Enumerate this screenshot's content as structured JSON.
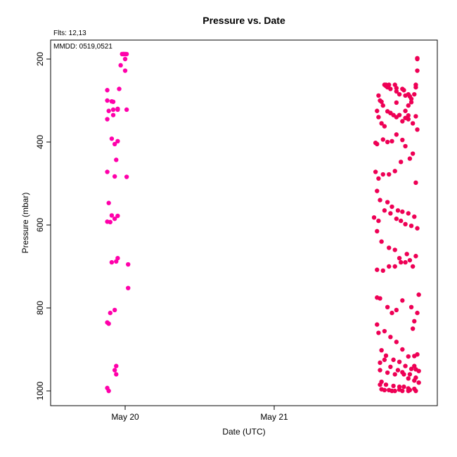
{
  "chart_data": {
    "type": "scatter",
    "title": "Pressure  vs. Date",
    "annotation_fits": "Flts: 12,13",
    "annotation_mmdd": "MMDD: 0519,0521",
    "xlabel": "Date (UTC)",
    "ylabel": "Pressure (mbar)",
    "x_ticks": [
      "May 20",
      "May 21"
    ],
    "y_ticks": [
      200,
      400,
      600,
      800,
      1000
    ],
    "ylim": [
      1037,
      155
    ],
    "y_reversed": true,
    "x_axis_days": [
      "May 20",
      "May 21"
    ],
    "grid": false,
    "colors": {
      "flight_12": "#ff00aa",
      "flight_13": "#ee0055"
    },
    "series": [
      {
        "color": "#ff00aa",
        "x": [
          -0.02,
          -0.02,
          -0.01,
          -0.01,
          -0.01,
          0.0,
          0.0,
          0.01,
          0.0,
          -0.03,
          0.0,
          -0.04,
          -0.12,
          -0.12,
          -0.09,
          -0.08,
          -0.05,
          -0.05,
          -0.08,
          -0.11,
          0.01,
          -0.12,
          -0.08,
          -0.05,
          -0.09,
          -0.07,
          -0.06,
          -0.12,
          -0.07,
          0.01,
          -0.11,
          -0.09,
          -0.05,
          -0.12,
          -0.1,
          -0.07,
          0.02,
          -0.09,
          -0.06,
          -0.05,
          0.02,
          -0.1,
          -0.07,
          -0.12,
          -0.11,
          -0.07,
          -0.06,
          -0.06,
          -0.12,
          -0.11
        ],
        "y": [
          188,
          188,
          188,
          188,
          188,
          188,
          188,
          188,
          200,
          215,
          228,
          272,
          275,
          300,
          302,
          303,
          320,
          322,
          322,
          325,
          322,
          345,
          335,
          398,
          392,
          405,
          443,
          472,
          483,
          484,
          547,
          577,
          578,
          592,
          593,
          585,
          695,
          690,
          688,
          680,
          752,
          812,
          805,
          835,
          838,
          950,
          940,
          960,
          993,
          1000
        ]
      },
      {
        "color": "#ee0055",
        "x": [
          1.96,
          1.96,
          1.96,
          1.95,
          1.74,
          1.75,
          1.75,
          1.77,
          1.76,
          1.78,
          1.81,
          1.82,
          1.82,
          1.84,
          1.86,
          1.88,
          1.87,
          1.9,
          1.91,
          1.94,
          1.95,
          1.92,
          1.9,
          1.7,
          1.71,
          1.72,
          1.73,
          1.76,
          1.78,
          1.8,
          1.82,
          1.86,
          1.88,
          1.9,
          1.93,
          1.96,
          1.69,
          1.7,
          1.72,
          1.74,
          1.78,
          1.82,
          1.84,
          1.88,
          1.9,
          1.92,
          1.95,
          1.68,
          1.69,
          1.73,
          1.76,
          1.79,
          1.82,
          1.86,
          1.88,
          1.93,
          1.68,
          1.7,
          1.73,
          1.77,
          1.81,
          1.85,
          1.91,
          1.95,
          1.69,
          1.71,
          1.76,
          1.79,
          1.83,
          1.86,
          1.9,
          1.94,
          1.67,
          1.7,
          1.74,
          1.78,
          1.82,
          1.85,
          1.88,
          1.92,
          1.96,
          1.69,
          1.72,
          1.77,
          1.81,
          1.84,
          1.88,
          1.91,
          1.95,
          1.69,
          1.73,
          1.77,
          1.81,
          1.85,
          1.89,
          1.93,
          1.97,
          1.69,
          1.71,
          1.76,
          1.79,
          1.82,
          1.86,
          1.92,
          1.96,
          1.94,
          1.93,
          1.69,
          1.7,
          1.74,
          1.78,
          1.82,
          1.86,
          1.9,
          1.94,
          1.71,
          1.74,
          1.78,
          1.83,
          1.87,
          1.9,
          1.94,
          1.97,
          1.71,
          1.74,
          1.79,
          1.84,
          1.87,
          1.91,
          1.94,
          1.96,
          1.72,
          1.75,
          1.8,
          1.84,
          1.88,
          1.92,
          1.95,
          1.97,
          1.71,
          1.76,
          1.81,
          1.86,
          1.91,
          1.95,
          1.72,
          1.75,
          1.8,
          1.84,
          1.9,
          1.94,
          1.72,
          1.77,
          1.81,
          1.86,
          1.9,
          1.95
        ],
        "y": [
          198,
          200,
          228,
          262,
          262,
          262,
          265,
          262,
          268,
          272,
          262,
          270,
          278,
          285,
          272,
          288,
          275,
          285,
          290,
          285,
          268,
          296,
          312,
          288,
          300,
          303,
          312,
          326,
          330,
          335,
          340,
          350,
          342,
          345,
          355,
          370,
          325,
          340,
          355,
          362,
          330,
          305,
          335,
          325,
          336,
          304,
          338,
          402,
          405,
          394,
          400,
          398,
          382,
          395,
          410,
          428,
          472,
          488,
          478,
          478,
          470,
          448,
          440,
          498,
          518,
          540,
          545,
          556,
          565,
          568,
          572,
          580,
          582,
          590,
          565,
          572,
          585,
          590,
          598,
          602,
          608,
          615,
          640,
          655,
          660,
          680,
          690,
          685,
          675,
          708,
          710,
          700,
          700,
          690,
          670,
          700,
          768,
          775,
          777,
          798,
          812,
          805,
          782,
          798,
          812,
          832,
          850,
          840,
          860,
          856,
          870,
          882,
          900,
          917,
          916,
          932,
          925,
          942,
          950,
          960,
          970,
          975,
          980,
          985,
          998,
          1000,
          997,
          990,
          998,
          940,
          912,
          902,
          915,
          925,
          930,
          940,
          947,
          948,
          952,
          950,
          956,
          960,
          955,
          960,
          968,
          978,
          985,
          988,
          990,
          994,
          995,
          996,
          998,
          1000,
          1000,
          1000,
          1000
        ]
      }
    ]
  }
}
